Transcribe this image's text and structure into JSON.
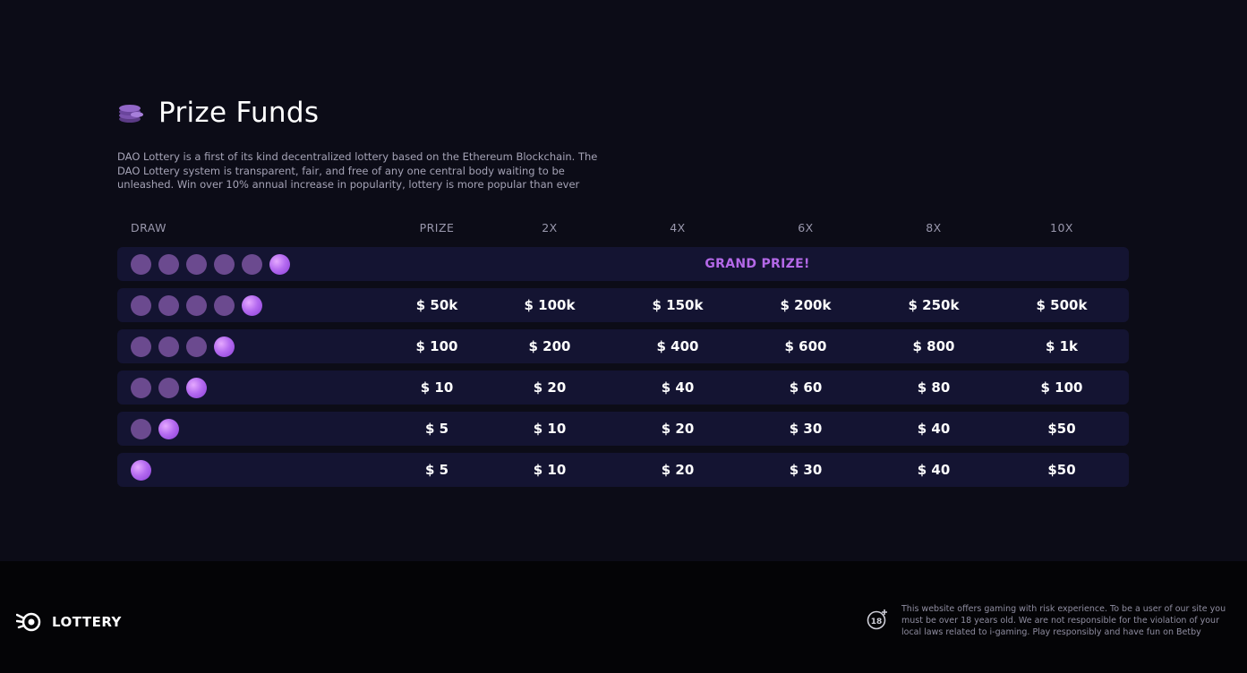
{
  "header": {
    "title": "Prize Funds",
    "title_icon": "coins-stack-icon",
    "description": "DAO Lottery is a first of its kind decentralized lottery based on the Ethereum Blockchain. The DAO Lottery system is transparent, fair, and free of any one central body waiting to be unleashed. Win over 10% annual increase in popularity, lottery is more popular than ever"
  },
  "table": {
    "columns": [
      "DRAW",
      "PRIZE",
      "2X",
      "4X",
      "6X",
      "8X",
      "10X"
    ],
    "rows": [
      {
        "balls": 6,
        "grand": "GRAND PRIZE!"
      },
      {
        "balls": 5,
        "values": [
          "$ 50k",
          "$ 100k",
          "$ 150k",
          "$ 200k",
          "$ 250k",
          "$ 500k"
        ]
      },
      {
        "balls": 4,
        "values": [
          "$ 100",
          "$ 200",
          "$ 400",
          "$ 600",
          "$ 800",
          "$ 1k"
        ]
      },
      {
        "balls": 3,
        "values": [
          "$ 10",
          "$ 20",
          "$ 40",
          "$ 60",
          "$ 80",
          "$ 100"
        ]
      },
      {
        "balls": 2,
        "values": [
          "$ 5",
          "$ 10",
          "$ 20",
          "$ 30",
          "$ 40",
          "$50"
        ]
      },
      {
        "balls": 1,
        "values": [
          "$ 5",
          "$ 10",
          "$ 20",
          "$ 30",
          "$ 40",
          "$50"
        ]
      }
    ]
  },
  "footer": {
    "brand": "LOTTERY",
    "brand_icon": "lottery-logo-icon",
    "age_icon": "18-plus-icon",
    "disclaimer": "This website offers gaming with risk experience. To be a user of our site you must be over 18 years old. We are not responsible for the violation of your local laws related to i-gaming. Play responsibly and have fun on Betby"
  },
  "colors": {
    "background": "#0c0c17",
    "row_bg": "#141432",
    "accent": "#b469e8",
    "ball_dim": "#6b4a8f",
    "footer_bg": "#040406"
  }
}
